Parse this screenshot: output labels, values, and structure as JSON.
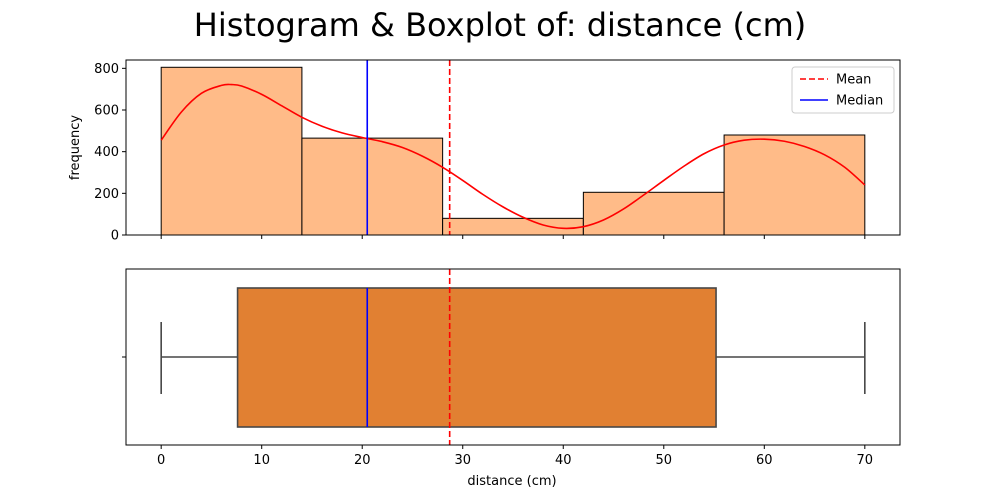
{
  "chart_data": [
    {
      "type": "histogram",
      "title": "Histogram & Boxplot of: distance (cm)",
      "xlabel": "",
      "ylabel": "frequency",
      "xlim": [
        -3.5,
        73.5
      ],
      "ylim": [
        0,
        840
      ],
      "xticks": [
        0,
        10,
        20,
        30,
        40,
        50,
        60,
        70
      ],
      "yticks": [
        0,
        200,
        400,
        600,
        800
      ],
      "bins": [
        {
          "x0": 0,
          "x1": 14,
          "count": 805
        },
        {
          "x0": 14,
          "x1": 28,
          "count": 465
        },
        {
          "x0": 28,
          "x1": 42,
          "count": 80
        },
        {
          "x0": 42,
          "x1": 56,
          "count": 205
        },
        {
          "x0": 56,
          "x1": 70,
          "count": 480
        }
      ],
      "kde": {
        "x": [
          0,
          2,
          4,
          6,
          7,
          8,
          10,
          12,
          14,
          16,
          18,
          20,
          22,
          24,
          26,
          28,
          30,
          32,
          34,
          36,
          38,
          40,
          42,
          44,
          46,
          48,
          50,
          52,
          54,
          56,
          58,
          60,
          62,
          64,
          66,
          68,
          70
        ],
        "y": [
          455,
          590,
          680,
          718,
          722,
          715,
          675,
          620,
          565,
          522,
          490,
          468,
          448,
          420,
          378,
          325,
          262,
          195,
          135,
          85,
          48,
          32,
          40,
          72,
          125,
          192,
          262,
          330,
          390,
          432,
          455,
          460,
          450,
          425,
          385,
          325,
          240
        ]
      },
      "mean": 28.7,
      "median": 20.5,
      "legend": {
        "position": "upper-right",
        "entries": [
          "Mean",
          "Median"
        ]
      },
      "colors": {
        "bars": "#ffbb88",
        "kde": "#ff0000",
        "mean": "#ff0000",
        "median": "#0000ff"
      }
    },
    {
      "type": "boxplot",
      "xlabel": "distance (cm)",
      "xlim": [
        -3.5,
        73.5
      ],
      "xticks": [
        0,
        10,
        20,
        30,
        40,
        50,
        60,
        70
      ],
      "whisker_low": 0,
      "q1": 7.6,
      "median": 20.5,
      "q3": 55.2,
      "whisker_high": 70,
      "mean": 28.7,
      "colors": {
        "box": "#e18032",
        "edge": "#474747",
        "mean": "#ff0000",
        "median": "#0000ff"
      }
    }
  ]
}
